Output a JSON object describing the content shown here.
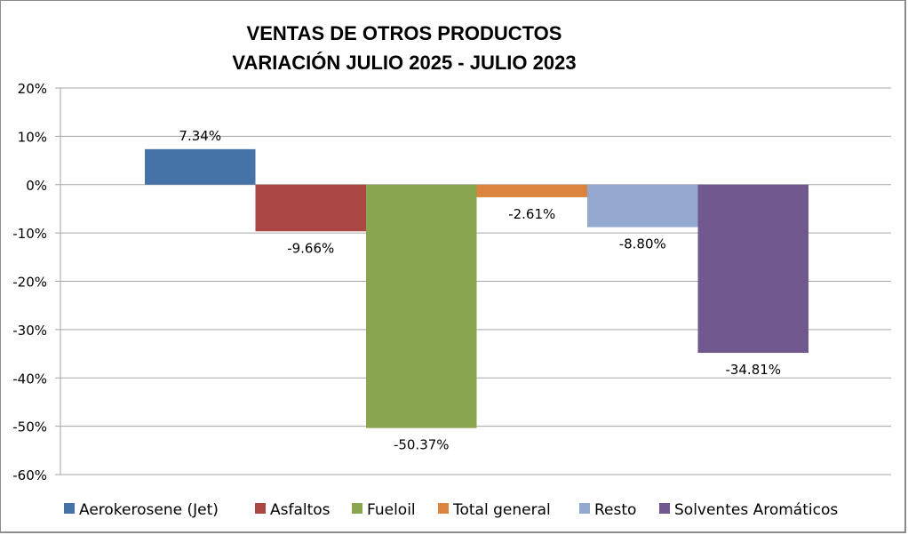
{
  "chart_data": {
    "type": "bar",
    "title": "VENTAS DE OTROS PRODUCTOS",
    "subtitle": "VARIACIÓN JULIO 2025 - JULIO 2023",
    "xlabel": "",
    "ylabel": "",
    "ylim": [
      -60,
      20
    ],
    "ytick_step": 10,
    "y_format": "percent",
    "grid": true,
    "legend_position": "bottom",
    "categories": [
      ""
    ],
    "series": [
      {
        "name": "Aerokerosene (Jet)",
        "values": [
          7.34
        ],
        "label": "7.34%",
        "color": "#4572a7"
      },
      {
        "name": "Asfaltos",
        "values": [
          -9.66
        ],
        "label": "-9.66%",
        "color": "#aa4643"
      },
      {
        "name": "Fueloil",
        "values": [
          -50.37
        ],
        "label": "-50.37%",
        "color": "#89a54e"
      },
      {
        "name": "Total general",
        "values": [
          -2.61
        ],
        "label": "-2.61%",
        "color": "#db843d"
      },
      {
        "name": "Resto",
        "values": [
          -8.8
        ],
        "label": "-8.80%",
        "color": "#93a9cf"
      },
      {
        "name": "Solventes Aromáticos",
        "values": [
          -34.81
        ],
        "label": "-34.81%",
        "color": "#71588f"
      }
    ]
  }
}
